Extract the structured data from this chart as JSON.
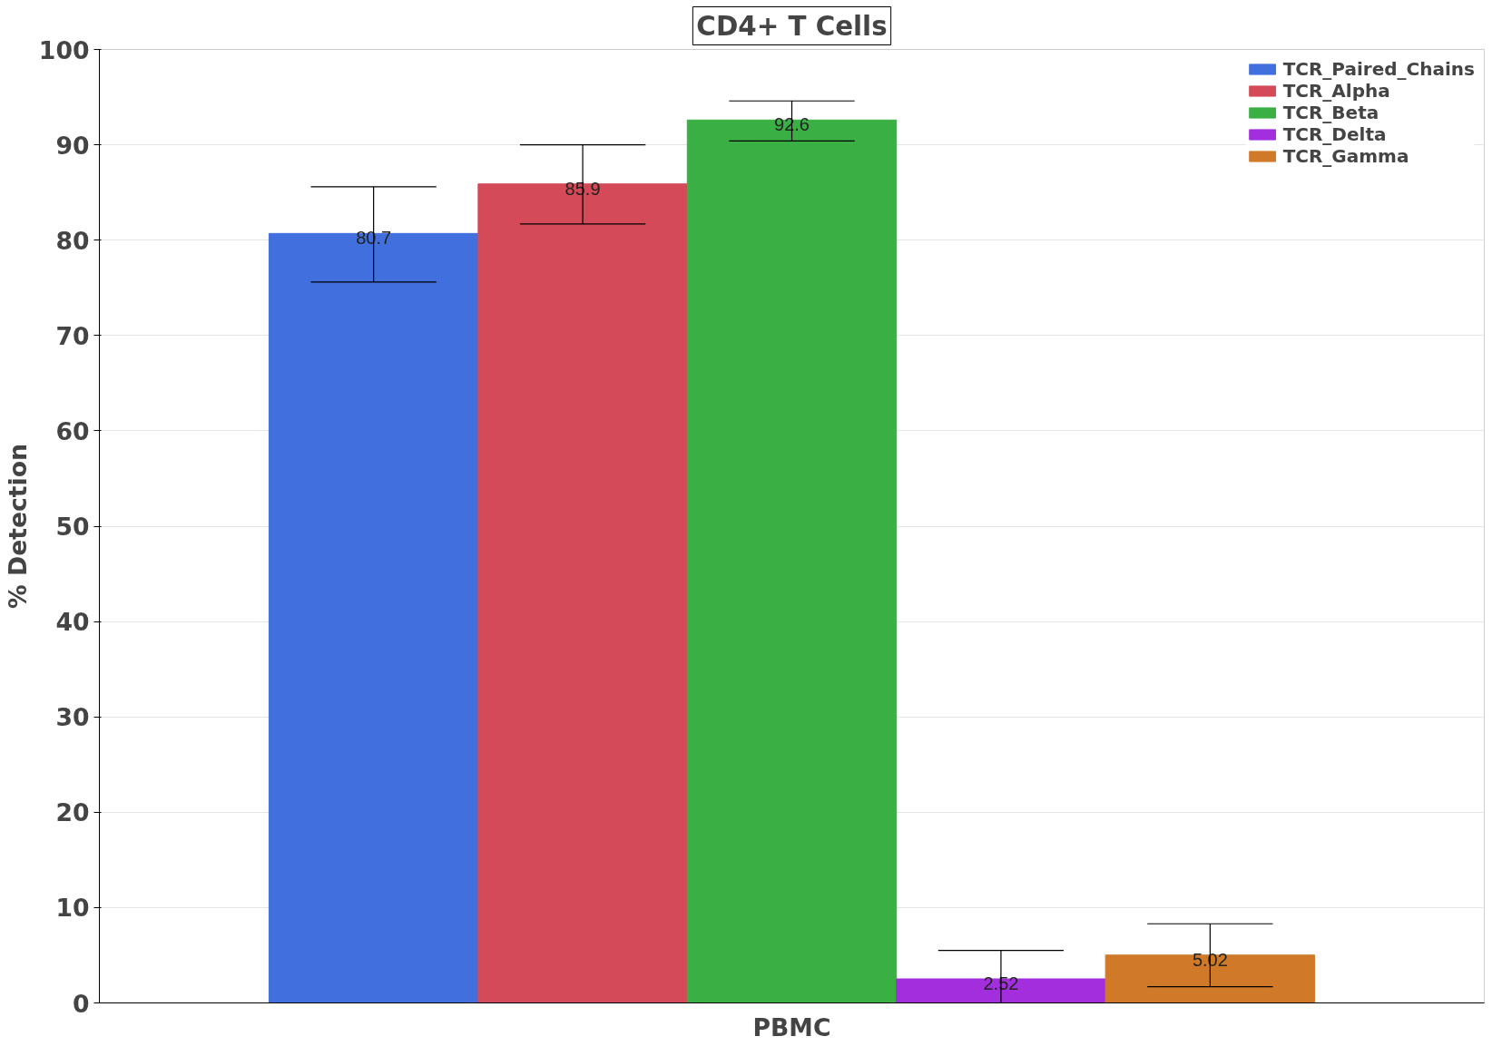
{
  "chart_data": {
    "type": "bar",
    "title": "CD4+ T Cells",
    "ylabel": "% Detection",
    "categories": [
      "PBMC"
    ],
    "series": [
      {
        "name": "TCR_Paired_Chains",
        "color": "#4170de",
        "values": [
          80.7
        ],
        "errors": [
          [
            75.6,
            85.6
          ]
        ]
      },
      {
        "name": "TCR_Alpha",
        "color": "#d44a59",
        "values": [
          85.9
        ],
        "errors": [
          [
            81.7,
            90.0
          ]
        ]
      },
      {
        "name": "TCR_Beta",
        "color": "#3aaf44",
        "values": [
          92.6
        ],
        "errors": [
          [
            90.4,
            94.6
          ]
        ]
      },
      {
        "name": "TCR_Delta",
        "color": "#a22ede",
        "values": [
          2.52
        ],
        "errors": [
          [
            0,
            5.5
          ]
        ]
      },
      {
        "name": "TCR_Gamma",
        "color": "#d07a29",
        "values": [
          5.02
        ],
        "errors": [
          [
            1.7,
            8.3
          ]
        ]
      }
    ],
    "ylim": [
      0,
      100
    ],
    "yticks": [
      0,
      10,
      20,
      30,
      40,
      50,
      60,
      70,
      80,
      90,
      100
    ],
    "grid": "y",
    "legend": "top right",
    "data_labels": true
  }
}
